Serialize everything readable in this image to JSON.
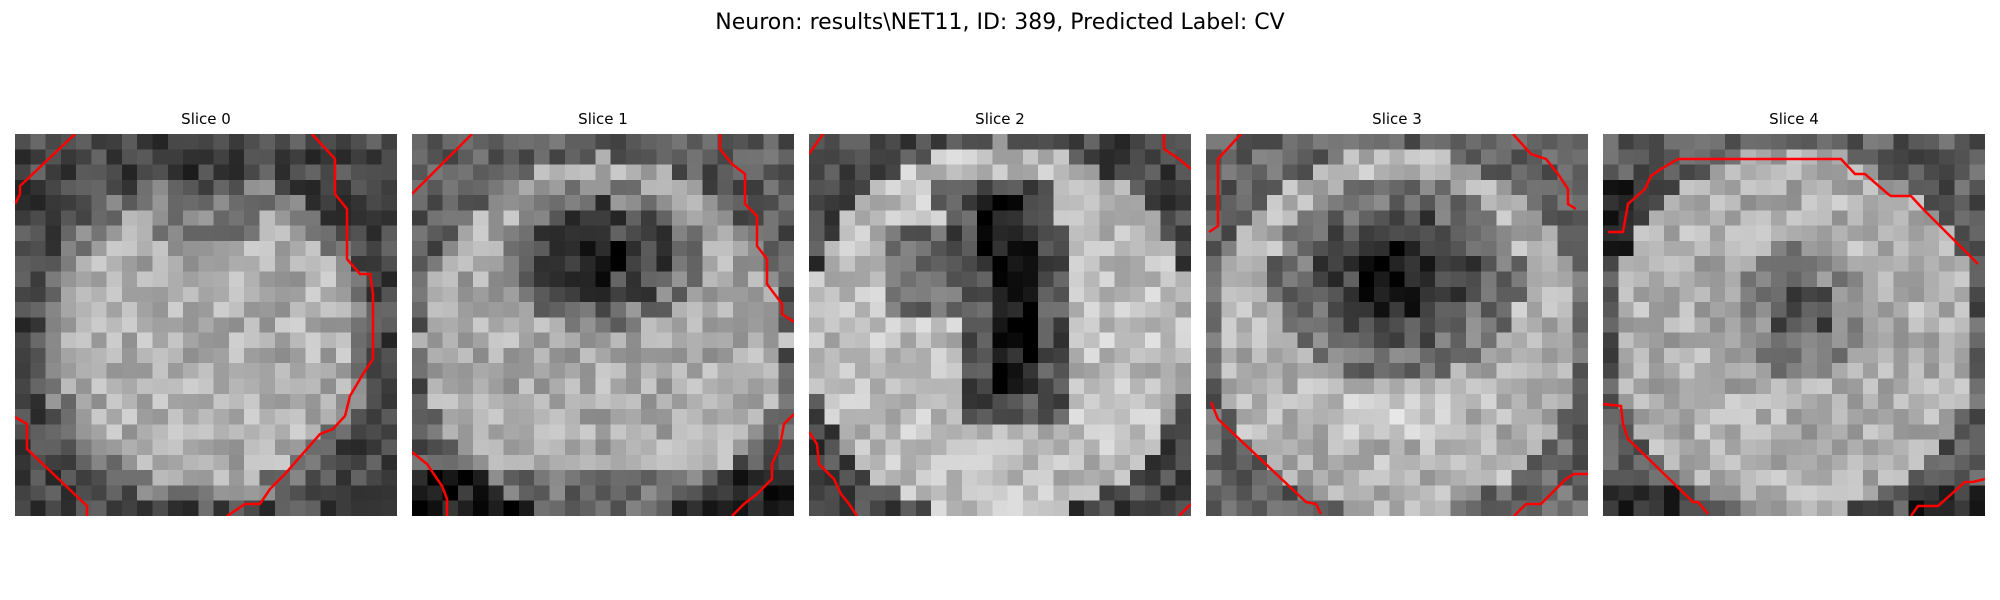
{
  "figure": {
    "title": "Neuron: results\\NET11, ID: 389, Predicted Label: CV"
  },
  "contour_color": "#ff0000",
  "colormap": "gray",
  "slices": [
    {
      "title": "Slice 0",
      "pattern": "blob-center"
    },
    {
      "title": "Slice 1",
      "pattern": "dark-spot-upper"
    },
    {
      "title": "Slice 2",
      "pattern": "dark-vertical"
    },
    {
      "title": "Slice 3",
      "pattern": "dark-center"
    },
    {
      "title": "Slice 4",
      "pattern": "faint-center"
    }
  ]
}
